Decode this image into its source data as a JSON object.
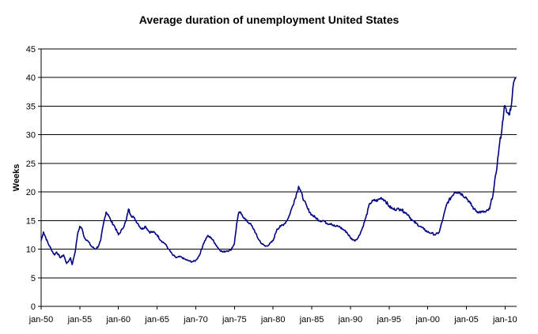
{
  "chart_data": {
    "type": "line",
    "title": "Average duration of unemployment United States",
    "xlabel": "",
    "ylabel": "Weeks",
    "ylim": [
      0,
      45
    ],
    "yticks": [
      0,
      5,
      10,
      15,
      20,
      25,
      30,
      35,
      40,
      45
    ],
    "xlim": [
      1950,
      2011.5
    ],
    "xticks": [
      {
        "year": 1950,
        "label": "jan-50"
      },
      {
        "year": 1955,
        "label": "jan-55"
      },
      {
        "year": 1960,
        "label": "jan-60"
      },
      {
        "year": 1965,
        "label": "jan-65"
      },
      {
        "year": 1970,
        "label": "jan-70"
      },
      {
        "year": 1975,
        "label": "jan-75"
      },
      {
        "year": 1980,
        "label": "jan-80"
      },
      {
        "year": 1985,
        "label": "jan-85"
      },
      {
        "year": 1990,
        "label": "jan-90"
      },
      {
        "year": 1995,
        "label": "jan-95"
      },
      {
        "year": 2000,
        "label": "jan-00"
      },
      {
        "year": 2005,
        "label": "jan-05"
      },
      {
        "year": 2010,
        "label": "jan-10"
      }
    ],
    "grid": "horizontal",
    "legend": "none",
    "line_color": "#000080",
    "series": [
      {
        "x": [
          1950.0,
          1950.3,
          1950.6,
          1950.9,
          1951.3,
          1951.7,
          1952.0,
          1952.5,
          1952.9,
          1953.3,
          1953.6,
          1953.8,
          1954.0,
          1954.4,
          1954.7,
          1955.0,
          1955.3,
          1955.6,
          1956.0,
          1956.5,
          1957.0,
          1957.4,
          1957.7,
          1958.0,
          1958.4,
          1958.7,
          1959.0,
          1959.5,
          1960.0,
          1960.5,
          1961.0,
          1961.3,
          1961.6,
          1962.0,
          1962.5,
          1963.0,
          1963.5,
          1964.0,
          1964.5,
          1965.0,
          1965.5,
          1966.0,
          1966.5,
          1967.0,
          1967.5,
          1968.0,
          1968.5,
          1969.0,
          1969.5,
          1970.0,
          1970.5,
          1971.0,
          1971.5,
          1972.0,
          1972.5,
          1973.0,
          1973.5,
          1974.0,
          1974.5,
          1975.0,
          1975.3,
          1975.6,
          1976.0,
          1976.5,
          1977.0,
          1977.5,
          1978.0,
          1978.5,
          1979.0,
          1979.5,
          1980.0,
          1980.5,
          1981.0,
          1981.5,
          1982.0,
          1982.5,
          1983.0,
          1983.3,
          1983.6,
          1984.0,
          1984.5,
          1985.0,
          1985.5,
          1986.0,
          1986.5,
          1987.0,
          1987.5,
          1988.0,
          1988.5,
          1989.0,
          1989.5,
          1990.0,
          1990.5,
          1991.0,
          1991.5,
          1992.0,
          1992.5,
          1993.0,
          1993.5,
          1994.0,
          1994.5,
          1995.0,
          1995.5,
          1996.0,
          1996.5,
          1997.0,
          1997.5,
          1998.0,
          1998.5,
          1999.0,
          1999.5,
          2000.0,
          2000.5,
          2001.0,
          2001.5,
          2002.0,
          2002.5,
          2003.0,
          2003.5,
          2004.0,
          2004.5,
          2005.0,
          2005.5,
          2006.0,
          2006.5,
          2007.0,
          2007.5,
          2008.0,
          2008.5,
          2009.0,
          2009.3,
          2009.6,
          2009.9,
          2010.2,
          2010.5,
          2010.8,
          2011.0,
          2011.2,
          2011.4
        ],
        "y": [
          11.5,
          13.0,
          12.0,
          11.0,
          10.0,
          9.0,
          9.5,
          8.5,
          9.0,
          7.5,
          8.0,
          8.5,
          7.3,
          9.5,
          12.5,
          14.0,
          13.5,
          12.0,
          11.5,
          10.5,
          10.0,
          10.5,
          11.5,
          14.0,
          16.5,
          16.0,
          15.0,
          14.0,
          12.5,
          13.5,
          15.0,
          17.0,
          16.0,
          15.5,
          14.5,
          13.5,
          14.0,
          13.0,
          13.0,
          12.5,
          11.5,
          11.0,
          10.0,
          9.0,
          8.5,
          8.7,
          8.3,
          8.0,
          7.8,
          8.0,
          9.0,
          11.0,
          12.3,
          12.0,
          11.0,
          10.0,
          9.5,
          9.7,
          9.8,
          11.0,
          14.5,
          16.5,
          16.0,
          15.0,
          14.5,
          13.5,
          12.0,
          11.0,
          10.5,
          10.8,
          11.5,
          13.5,
          14.0,
          14.5,
          15.5,
          17.5,
          19.5,
          21.0,
          20.0,
          18.5,
          17.0,
          16.0,
          15.5,
          15.0,
          15.0,
          14.5,
          14.5,
          14.0,
          14.0,
          13.5,
          13.0,
          12.0,
          11.5,
          12.0,
          13.5,
          15.5,
          18.0,
          18.5,
          18.5,
          19.0,
          18.5,
          17.5,
          17.0,
          17.0,
          17.0,
          16.5,
          16.0,
          15.0,
          14.5,
          14.0,
          13.5,
          13.0,
          12.8,
          12.5,
          13.0,
          15.5,
          18.0,
          19.0,
          20.0,
          20.0,
          19.5,
          19.0,
          18.0,
          17.0,
          16.5,
          16.5,
          16.5,
          17.0,
          20.0,
          25.0,
          28.5,
          31.0,
          35.0,
          34.0,
          33.5,
          35.0,
          38.0,
          39.5,
          39.8
        ]
      }
    ]
  }
}
